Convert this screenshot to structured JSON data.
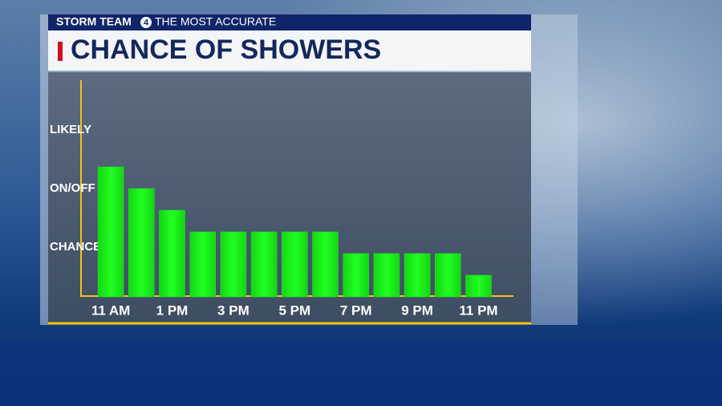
{
  "header": {
    "brand": "STORM TEAM",
    "logo": "4",
    "tagline": "THE MOST ACCURATE"
  },
  "chart_data": {
    "type": "bar",
    "title": "CHANCE OF SHOWERS",
    "categories": [
      "11 AM",
      null,
      "1 PM",
      null,
      "3 PM",
      null,
      "5 PM",
      null,
      "7 PM",
      null,
      "9 PM",
      null,
      "11 PM"
    ],
    "values": [
      6,
      5,
      4,
      3,
      3,
      3,
      3,
      3,
      2,
      2,
      2,
      2,
      1
    ],
    "color": "#18f018",
    "ylim": [
      0,
      10
    ],
    "yticks": [
      {
        "value": 2.3,
        "label": "CHANCE"
      },
      {
        "value": 5,
        "label": "ON/OFF"
      },
      {
        "value": 7.7,
        "label": "LIKELY"
      }
    ],
    "grid": false
  }
}
